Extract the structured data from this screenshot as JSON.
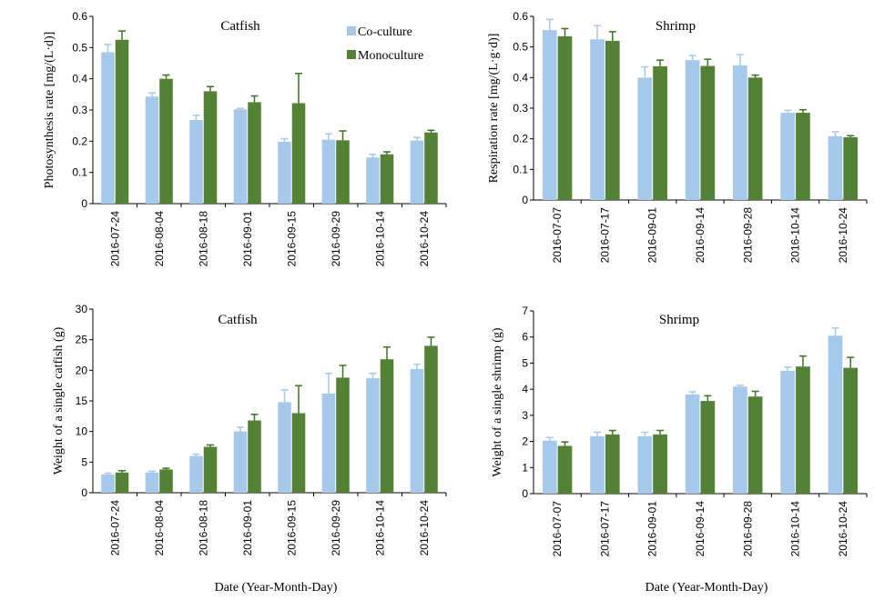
{
  "colors": {
    "co_culture": "#a6c8ea",
    "monoculture": "#538135",
    "error_co": "#a6c8ea",
    "error_mono": "#3f7024"
  },
  "x_axis_label": "Date (Year-Month-Day)",
  "chart_data": [
    {
      "type": "bar",
      "title": "Catfish",
      "ylabel": "Photosynthesis  rate  [mg/(L·d)]",
      "ylim": [
        0,
        0.6
      ],
      "yticks": [
        "0",
        "0.1",
        "0.2",
        "0.3",
        "0.4",
        "0.5",
        "0.6"
      ],
      "legend": "top-right",
      "categories": [
        "2016-07-24",
        "2016-08-04",
        "2016-08-18",
        "2016-09-01",
        "2016-09-15",
        "2016-09-29",
        "2016-10-14",
        "2016-10-24"
      ],
      "series": [
        {
          "name": "Co-culture",
          "values": [
            0.485,
            0.343,
            0.268,
            0.302,
            0.198,
            0.205,
            0.148,
            0.202
          ],
          "errors": [
            0.025,
            0.012,
            0.015,
            0.003,
            0.01,
            0.018,
            0.01,
            0.01
          ]
        },
        {
          "name": "Monoculture",
          "values": [
            0.525,
            0.4,
            0.36,
            0.325,
            0.322,
            0.203,
            0.158,
            0.228
          ],
          "errors": [
            0.028,
            0.012,
            0.015,
            0.02,
            0.095,
            0.03,
            0.008,
            0.007
          ]
        }
      ]
    },
    {
      "type": "bar",
      "title": "Shrimp",
      "ylabel": "Respiration rate [mg/(L·g·d)]",
      "ylim": [
        0,
        0.6
      ],
      "yticks": [
        "0",
        "0.1",
        "0.2",
        "0.3",
        "0.4",
        "0.5",
        "0.6"
      ],
      "categories": [
        "2016-07-07",
        "2016-07-17",
        "2016-09-01",
        "2016-09-14",
        "2016-09-28",
        "2016-10-14",
        "2016-10-24"
      ],
      "series": [
        {
          "name": "Co-culture",
          "values": [
            0.555,
            0.525,
            0.4,
            0.457,
            0.44,
            0.285,
            0.208
          ],
          "errors": [
            0.035,
            0.045,
            0.035,
            0.015,
            0.035,
            0.008,
            0.015
          ]
        },
        {
          "name": "Monoculture",
          "values": [
            0.535,
            0.52,
            0.437,
            0.438,
            0.4,
            0.285,
            0.205
          ],
          "errors": [
            0.025,
            0.03,
            0.02,
            0.022,
            0.008,
            0.01,
            0.005
          ]
        }
      ]
    },
    {
      "type": "bar",
      "title": "Catfish",
      "ylabel": "Weight of a single catfish (g)",
      "ylim": [
        0,
        30
      ],
      "yticks": [
        "0",
        "5",
        "10",
        "15",
        "20",
        "25",
        "30"
      ],
      "categories": [
        "2016-07-24",
        "2016-08-04",
        "2016-08-18",
        "2016-09-01",
        "2016-09-15",
        "2016-09-29",
        "2016-10-14",
        "2016-10-24"
      ],
      "series": [
        {
          "name": "Co-culture",
          "values": [
            3.0,
            3.3,
            6.0,
            10.0,
            14.8,
            16.2,
            18.7,
            20.2
          ],
          "errors": [
            0.2,
            0.2,
            0.3,
            0.7,
            2.0,
            3.3,
            0.8,
            0.8
          ]
        },
        {
          "name": "Monoculture",
          "values": [
            3.3,
            3.8,
            7.5,
            11.8,
            13.0,
            18.8,
            21.8,
            24.0
          ],
          "errors": [
            0.3,
            0.2,
            0.3,
            1.0,
            4.5,
            2.0,
            2.0,
            1.4
          ]
        }
      ]
    },
    {
      "type": "bar",
      "title": "Shrimp",
      "ylabel": "Weight of a single shrimp (g)",
      "ylim": [
        0,
        7
      ],
      "yticks": [
        "0",
        "1",
        "2",
        "3",
        "4",
        "5",
        "6",
        "7"
      ],
      "categories": [
        "2016-07-07",
        "2016-07-17",
        "2016-09-01",
        "2016-09-14",
        "2016-09-28",
        "2016-10-14",
        "2016-10-24"
      ],
      "series": [
        {
          "name": "Co-culture",
          "values": [
            2.03,
            2.2,
            2.2,
            3.8,
            4.1,
            4.7,
            6.05
          ],
          "errors": [
            0.12,
            0.15,
            0.15,
            0.1,
            0.05,
            0.15,
            0.3
          ]
        },
        {
          "name": "Monoculture",
          "values": [
            1.83,
            2.27,
            2.27,
            3.55,
            3.72,
            4.87,
            4.82
          ],
          "errors": [
            0.15,
            0.15,
            0.15,
            0.2,
            0.2,
            0.4,
            0.4
          ]
        }
      ]
    }
  ]
}
